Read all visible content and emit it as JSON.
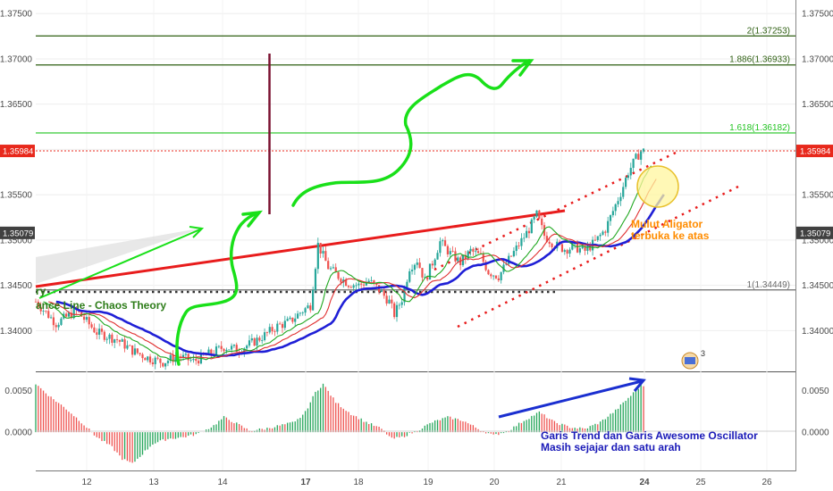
{
  "chart_data": {
    "type": "candlestick",
    "price_axis": {
      "ticks": [
        "1.37500",
        "1.37000",
        "1.36500",
        "1.36000",
        "1.35500",
        "1.35000",
        "1.34500",
        "1.34000"
      ],
      "tick_values": [
        1.375,
        1.37,
        1.365,
        1.36,
        1.355,
        1.35,
        1.345,
        1.34
      ],
      "range": [
        1.3355,
        1.3765
      ]
    },
    "osc_axis": {
      "ticks": [
        "0.0050",
        "0.0000"
      ],
      "tick_values": [
        0.005,
        0.0
      ],
      "range": [
        -0.0046,
        0.0072
      ]
    },
    "time_axis": {
      "ticks": [
        "12",
        "13",
        "14",
        "17",
        "18",
        "19",
        "20",
        "21",
        "24",
        "25",
        "26"
      ],
      "bold_ticks": [
        "17",
        "24"
      ]
    },
    "price_tags": [
      {
        "label": "1.35984",
        "value": 1.35984,
        "color": "#e8291c"
      },
      {
        "label": "1.35079",
        "value": 1.35079,
        "color": "#404040"
      }
    ],
    "fibonacci": [
      {
        "label": "2(1.37253)",
        "value": 1.37253,
        "color": "#2e5f12"
      },
      {
        "label": "1.886(1.36933)",
        "value": 1.36933,
        "color": "#2e5f12"
      },
      {
        "label": "1.618(1.36182)",
        "value": 1.36182,
        "color": "#22c422"
      },
      {
        "label": "1(1.34449)",
        "value": 1.34449,
        "color": "#6b6b6b"
      }
    ],
    "candle_path": [
      [
        0,
        1.3432
      ],
      [
        8,
        1.3408
      ],
      [
        16,
        1.3422
      ],
      [
        24,
        1.3398
      ],
      [
        32,
        1.339
      ],
      [
        38,
        1.3378
      ],
      [
        44,
        1.337
      ],
      [
        50,
        1.3365
      ],
      [
        56,
        1.3372
      ],
      [
        62,
        1.3366
      ],
      [
        68,
        1.3374
      ],
      [
        74,
        1.3382
      ],
      [
        80,
        1.3379
      ],
      [
        86,
        1.3388
      ],
      [
        90,
        1.3395
      ],
      [
        95,
        1.3405
      ],
      [
        100,
        1.341
      ],
      [
        104,
        1.342
      ],
      [
        108,
        1.3428
      ],
      [
        111,
        1.3495
      ],
      [
        115,
        1.347
      ],
      [
        119,
        1.346
      ],
      [
        123,
        1.3452
      ],
      [
        127,
        1.345
      ],
      [
        131,
        1.3455
      ],
      [
        135,
        1.3445
      ],
      [
        139,
        1.3432
      ],
      [
        141,
        1.3418
      ],
      [
        144,
        1.3435
      ],
      [
        147,
        1.347
      ],
      [
        150,
        1.3478
      ],
      [
        153,
        1.3455
      ],
      [
        156,
        1.3475
      ],
      [
        159,
        1.3498
      ],
      [
        163,
        1.3485
      ],
      [
        167,
        1.3475
      ],
      [
        171,
        1.3488
      ],
      [
        175,
        1.3482
      ],
      [
        178,
        1.3465
      ],
      [
        182,
        1.346
      ],
      [
        186,
        1.3478
      ],
      [
        190,
        1.3495
      ],
      [
        194,
        1.3512
      ],
      [
        197,
        1.3528
      ],
      [
        200,
        1.3505
      ],
      [
        204,
        1.3495
      ],
      [
        208,
        1.349
      ],
      [
        212,
        1.3492
      ],
      [
        216,
        1.3488
      ],
      [
        220,
        1.3498
      ],
      [
        224,
        1.3512
      ],
      [
        227,
        1.3532
      ],
      [
        230,
        1.3552
      ],
      [
        233,
        1.3575
      ],
      [
        236,
        1.359
      ],
      [
        238,
        1.3598
      ]
    ],
    "oscillator_path": [
      [
        0,
        0.0058
      ],
      [
        6,
        0.0042
      ],
      [
        12,
        0.0028
      ],
      [
        18,
        0.0012
      ],
      [
        24,
        -0.0006
      ],
      [
        30,
        -0.0018
      ],
      [
        34,
        -0.0032
      ],
      [
        38,
        -0.0038
      ],
      [
        42,
        -0.0026
      ],
      [
        46,
        -0.0014
      ],
      [
        52,
        -0.0008
      ],
      [
        58,
        -0.0006
      ],
      [
        64,
        -0.0002
      ],
      [
        70,
        0.0008
      ],
      [
        74,
        0.0018
      ],
      [
        78,
        0.0012
      ],
      [
        84,
        0.0002
      ],
      [
        90,
        0.0004
      ],
      [
        96,
        0.0008
      ],
      [
        102,
        0.0012
      ],
      [
        106,
        0.0024
      ],
      [
        110,
        0.0048
      ],
      [
        113,
        0.0058
      ],
      [
        118,
        0.0036
      ],
      [
        124,
        0.0022
      ],
      [
        130,
        0.0012
      ],
      [
        136,
        0.0004
      ],
      [
        140,
        -0.0008
      ],
      [
        144,
        -0.0006
      ],
      [
        150,
        0.0002
      ],
      [
        156,
        0.0012
      ],
      [
        162,
        0.0018
      ],
      [
        168,
        0.0014
      ],
      [
        174,
        0.0004
      ],
      [
        180,
        -0.0004
      ],
      [
        186,
        0.0002
      ],
      [
        192,
        0.0014
      ],
      [
        198,
        0.0024
      ],
      [
        204,
        0.0012
      ],
      [
        210,
        0.0006
      ],
      [
        216,
        0.0004
      ],
      [
        222,
        0.0012
      ],
      [
        228,
        0.0026
      ],
      [
        234,
        0.0044
      ],
      [
        238,
        0.0056
      ]
    ],
    "annotations": [
      {
        "text": "ry",
        "color": "#2e7d1a"
      },
      {
        "text": "ance Line - Chaos Theory",
        "color": "#2e7d1a"
      },
      {
        "text": "Mulut Aligator",
        "color": "#ff8c00"
      },
      {
        "text": "terbuka ke atas",
        "color": "#ff8c00"
      },
      {
        "text": "Garis Trend dan Garis Awesome Oscillator",
        "color": "#1a1ab8"
      },
      {
        "text": "Masih sejajar dan satu arah",
        "color": "#1a1ab8"
      }
    ],
    "badge_count": "3",
    "colors": {
      "up": "#26a69a",
      "down": "#ef5350",
      "jaw": "#1f1fd6",
      "teeth": "#e03030",
      "lips": "#21a821",
      "trend": "#e81c1c",
      "arrow": "#19e019",
      "osc_arrow": "#1a2fd0",
      "channel": "#e81c1c"
    }
  }
}
